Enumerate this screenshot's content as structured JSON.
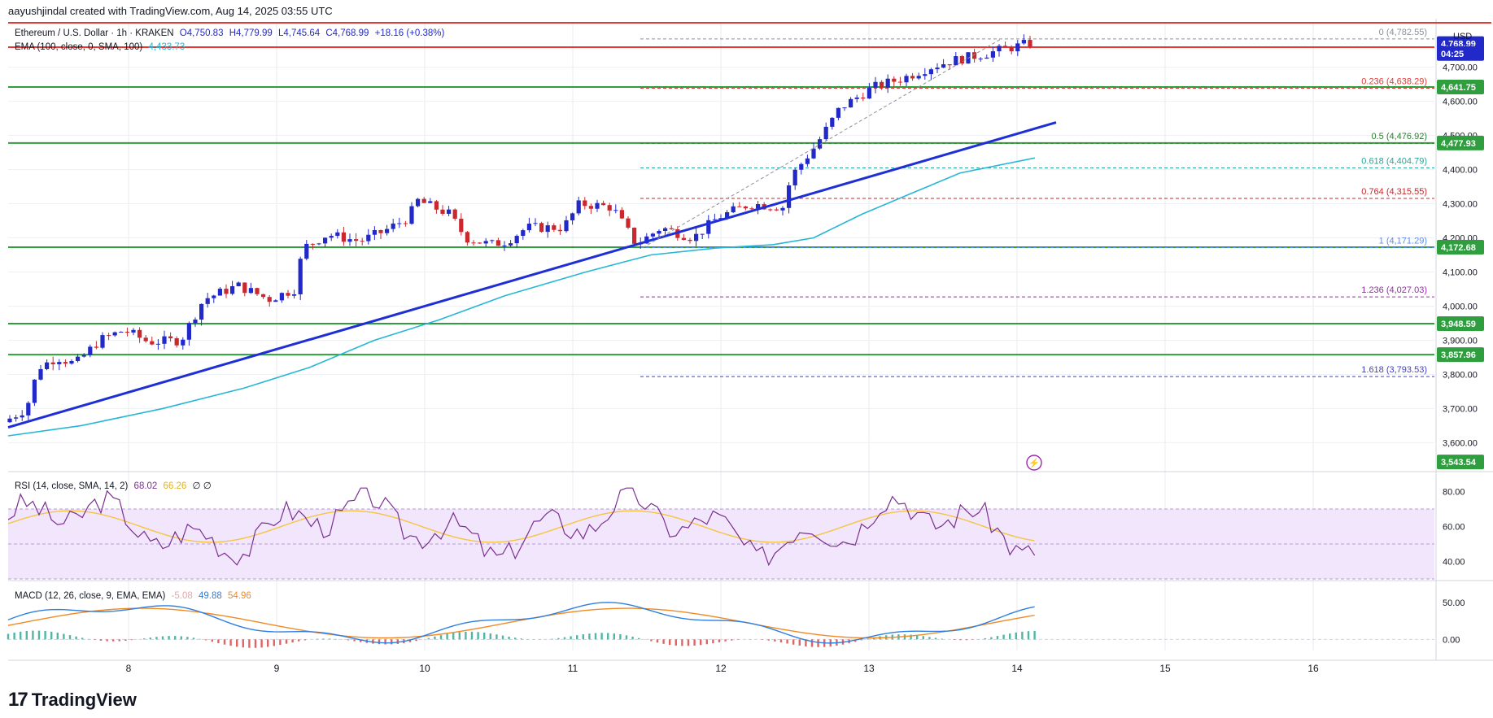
{
  "header": {
    "attribution": "aayushjindal created with TradingView.com, Aug 14, 2025 03:55 UTC"
  },
  "legend": {
    "symbol": "Ethereum / U.S. Dollar · 1h · KRAKEN",
    "open": "O4,750.83",
    "high": "H4,779.99",
    "low": "L4,745.64",
    "close": "C4,768.99",
    "change": "+18.16 (+0.38%)",
    "ema_label": "EMA (100, close, 0, SMA, 100)",
    "ema_value": "4,433.73",
    "rsi_label": "RSI (14, close, SMA, 14, 2)",
    "rsi_value": "68.02",
    "rsi_ma_value": "66.26",
    "rsi_extra": "∅ ∅",
    "macd_label": "MACD (12, 26, close, 9, EMA, EMA)",
    "macd_hist": "-5.08",
    "macd_line": "49.88",
    "macd_signal": "54.96"
  },
  "currency": "USD",
  "brand": {
    "name": "TradingView"
  },
  "colors": {
    "up": "#2229c9",
    "down": "#c9282e",
    "ema": "#26b6d6",
    "trend": "#1f2fd6",
    "support": "#2e9e3e",
    "resistance": "#e53935",
    "rsi": "#7b2f8f",
    "rsi_ma": "#f5c542",
    "macd": "#2f7fe0",
    "signal": "#f08a24"
  },
  "chart_data": {
    "type": "candlestick",
    "x_ticks": [
      "8",
      "9",
      "10",
      "11",
      "12",
      "13",
      "14",
      "15",
      "16"
    ],
    "y_ticks": [
      "3,600.00",
      "3,700.00",
      "3,800.00",
      "3,900.00",
      "4,000.00",
      "4,100.00",
      "4,200.00",
      "4,300.00",
      "4,400.00",
      "4,500.00",
      "4,600.00",
      "4,700.00"
    ],
    "ylim": [
      3520,
      4830
    ],
    "price_badges": [
      {
        "label": "4,768.99",
        "value": 4768.99,
        "color": "#2229c9"
      },
      {
        "label": "04:25",
        "value": 4740,
        "color": "#2229c9"
      },
      {
        "label": "4,641.75",
        "value": 4641.75,
        "color": "#2e9e3e"
      },
      {
        "label": "4,477.93",
        "value": 4477.93,
        "color": "#2e9e3e"
      },
      {
        "label": "4,172.68",
        "value": 4172.68,
        "color": "#2e9e3e"
      },
      {
        "label": "3,948.59",
        "value": 3948.59,
        "color": "#2e9e3e"
      },
      {
        "label": "3,857.96",
        "value": 3857.96,
        "color": "#2e9e3e"
      },
      {
        "label": "3,543.54",
        "value": 3543.54,
        "color": "#2e9e3e"
      }
    ],
    "support_levels": [
      4641.75,
      4477.93,
      4172.68,
      3948.59,
      3857.96
    ],
    "resistance_levels": [
      4830,
      4769
    ],
    "fib_levels": [
      {
        "label": "0 (4,782.55)",
        "value": 4782.55,
        "color": "#8a8f99"
      },
      {
        "label": "0.236 (4,638.29)",
        "value": 4638.29,
        "color": "#e53935"
      },
      {
        "label": "0.5 (4,476.92)",
        "value": 4476.92,
        "color": "#2e7d32"
      },
      {
        "label": "0.618 (4,404.79)",
        "value": 4404.79,
        "color": "#26a69a"
      },
      {
        "label": "0.764 (4,315.55)",
        "value": 4315.55,
        "color": "#c62828"
      },
      {
        "label": "1 (4,171.29)",
        "value": 4171.29,
        "color": "#5b8def"
      },
      {
        "label": "1.236 (4,027.03)",
        "value": 4027.03,
        "color": "#9c27b0"
      },
      {
        "label": "1.618 (3,793.53)",
        "value": 3793.53,
        "color": "#3f3fd1"
      }
    ],
    "rsi_ticks": [
      "80.00",
      "60.00",
      "40.00"
    ],
    "macd_ticks": [
      "50.00",
      "0.00"
    ]
  }
}
